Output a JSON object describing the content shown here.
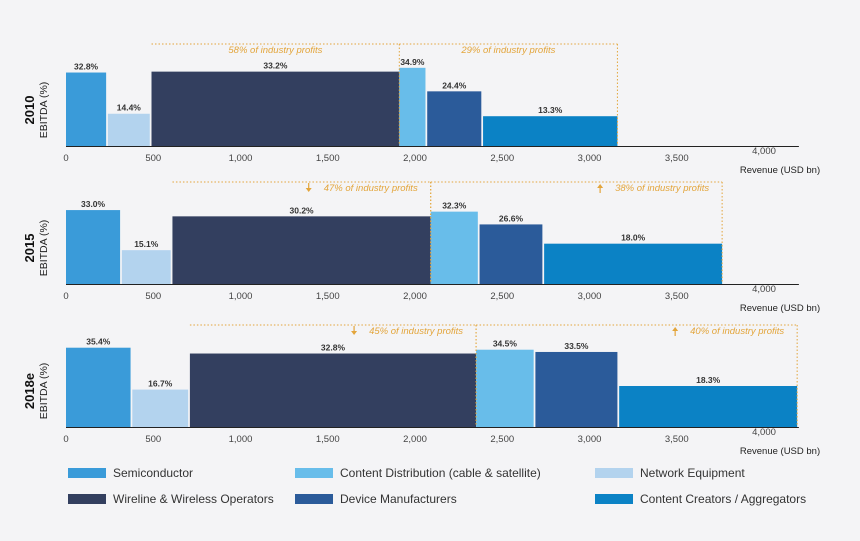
{
  "chart_data": {
    "type": "bar",
    "variable_width": true,
    "xlabel": "Revenue (USD bn)",
    "ylabel": "EBITDA (%)",
    "xlim": [
      0,
      4200
    ],
    "x_ticks": [
      "0",
      "500",
      "1,000",
      "1,500",
      "2,000",
      "2,500",
      "3,000",
      "3,500",
      "4,000"
    ],
    "x_tick_values": [
      0,
      500,
      1000,
      1500,
      2000,
      2500,
      3000,
      3500,
      4000
    ],
    "ylim": [
      0,
      38
    ],
    "panels": [
      {
        "year": "2010",
        "segments": [
          {
            "name": "Semiconductor",
            "start": 0,
            "end": 230,
            "ebitda": 32.8,
            "label": "32.8%"
          },
          {
            "name": "Network Equipment",
            "start": 240,
            "end": 480,
            "ebitda": 14.4,
            "label": "14.4%"
          },
          {
            "name": "Wireline & Wireless Operators",
            "start": 490,
            "end": 1910,
            "ebitda": 33.2,
            "label": "33.2%"
          },
          {
            "name": "Content Distribution (cable & satellite)",
            "start": 1910,
            "end": 2060,
            "ebitda": 34.9,
            "label": "34.9%"
          },
          {
            "name": "Device Manufacturers",
            "start": 2070,
            "end": 2380,
            "ebitda": 24.4,
            "label": "24.4%"
          },
          {
            "name": "Content Creators / Aggregators",
            "start": 2390,
            "end": 3160,
            "ebitda": 13.3,
            "label": "13.3%"
          }
        ],
        "annotations": [
          {
            "text": "58% of industry profits",
            "start": 490,
            "end": 1910
          },
          {
            "text": "29% of industry profits",
            "start": 1910,
            "end": 3160
          }
        ]
      },
      {
        "year": "2015",
        "segments": [
          {
            "name": "Semiconductor",
            "start": 0,
            "end": 310,
            "ebitda": 33.0,
            "label": "33.0%"
          },
          {
            "name": "Network Equipment",
            "start": 320,
            "end": 600,
            "ebitda": 15.1,
            "label": "15.1%"
          },
          {
            "name": "Wireline & Wireless Operators",
            "start": 610,
            "end": 2090,
            "ebitda": 30.2,
            "label": "30.2%"
          },
          {
            "name": "Content Distribution (cable & satellite)",
            "start": 2090,
            "end": 2360,
            "ebitda": 32.3,
            "label": "32.3%"
          },
          {
            "name": "Device Manufacturers",
            "start": 2370,
            "end": 2730,
            "ebitda": 26.6,
            "label": "26.6%"
          },
          {
            "name": "Content Creators / Aggregators",
            "start": 2740,
            "end": 3760,
            "ebitda": 18.0,
            "label": "18.0%"
          }
        ],
        "annotations": [
          {
            "text": "47% of industry profits",
            "start": 610,
            "end": 2090,
            "arrow": "down"
          },
          {
            "text": "38% of industry profits",
            "start": 2090,
            "end": 3760,
            "arrow": "up"
          }
        ]
      },
      {
        "year": "2018e",
        "segments": [
          {
            "name": "Semiconductor",
            "start": 0,
            "end": 370,
            "ebitda": 35.4,
            "label": "35.4%"
          },
          {
            "name": "Network Equipment",
            "start": 380,
            "end": 700,
            "ebitda": 16.7,
            "label": "16.7%"
          },
          {
            "name": "Wireline & Wireless Operators",
            "start": 710,
            "end": 2350,
            "ebitda": 32.8,
            "label": "32.8%"
          },
          {
            "name": "Content Distribution (cable & satellite)",
            "start": 2350,
            "end": 2680,
            "ebitda": 34.5,
            "label": "34.5%"
          },
          {
            "name": "Device Manufacturers",
            "start": 2690,
            "end": 3160,
            "ebitda": 33.5,
            "label": "33.5%"
          },
          {
            "name": "Content Creators / Aggregators",
            "start": 3170,
            "end": 4190,
            "ebitda": 18.3,
            "label": "18.3%"
          }
        ],
        "annotations": [
          {
            "text": "45% of industry profits",
            "start": 710,
            "end": 2350,
            "arrow": "down"
          },
          {
            "text": "40% of industry profits",
            "start": 2350,
            "end": 4190,
            "arrow": "up"
          }
        ]
      }
    ],
    "legend": [
      {
        "name": "Semiconductor",
        "color": "#3a9bd9"
      },
      {
        "name": "Content Distribution (cable & satellite)",
        "color": "#68bdea"
      },
      {
        "name": "Network Equipment",
        "color": "#b3d3ee"
      },
      {
        "name": "Wireline & Wireless Operators",
        "color": "#333f5f"
      },
      {
        "name": "Device Manufacturers",
        "color": "#2b5b9a"
      },
      {
        "name": "Content Creators / Aggregators",
        "color": "#0b82c5"
      }
    ],
    "colors": {
      "Semiconductor": "#3a9bd9",
      "Network Equipment": "#b3d3ee",
      "Wireline & Wireless Operators": "#333f5f",
      "Content Distribution (cable & satellite)": "#68bdea",
      "Device Manufacturers": "#2b5b9a",
      "Content Creators / Aggregators": "#0b82c5",
      "annotation": "#e3a53b",
      "axis": "#222222",
      "text": "#333333"
    }
  }
}
